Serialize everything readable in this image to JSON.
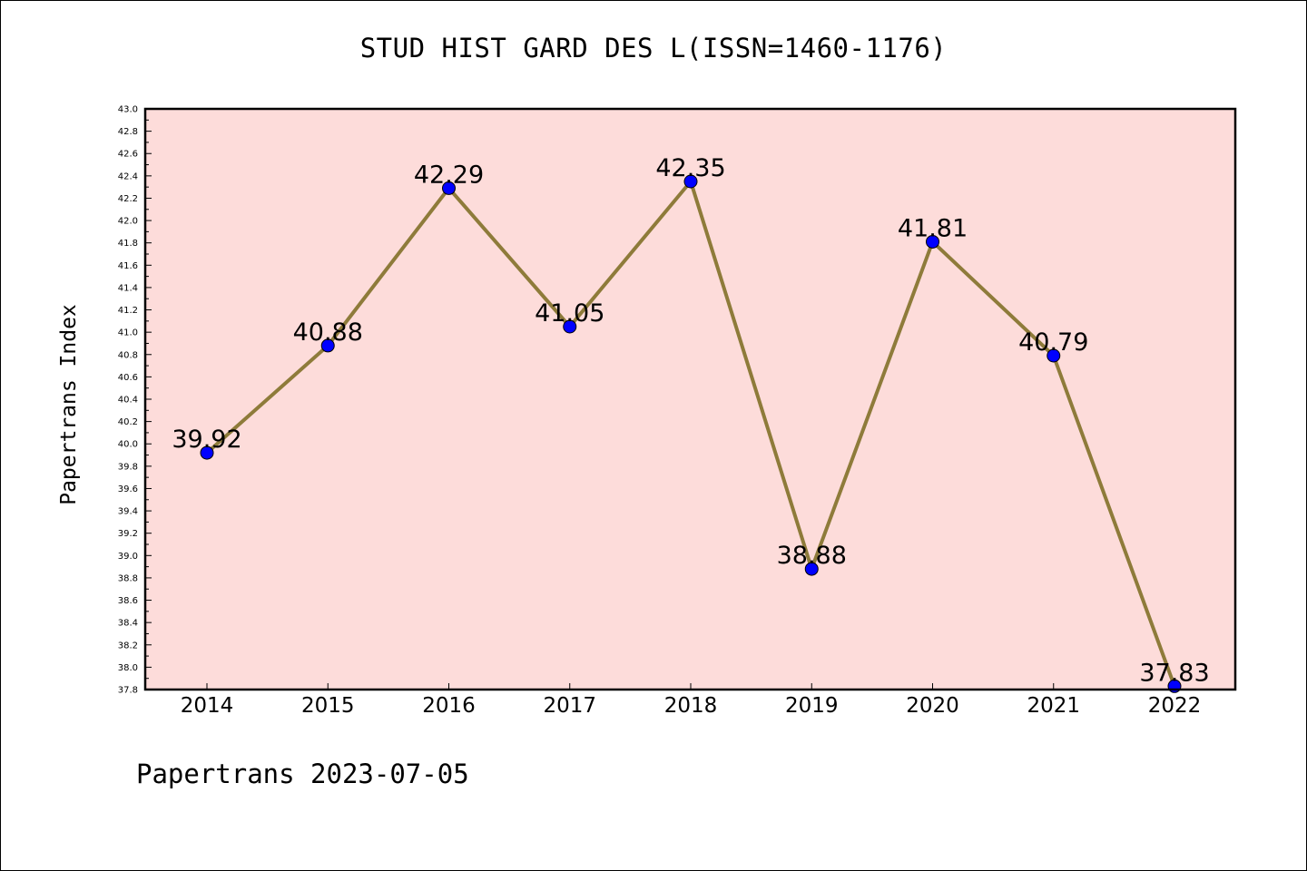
{
  "chart_data": {
    "type": "line",
    "title": "STUD HIST GARD DES L(ISSN=1460-1176)",
    "xlabel": "",
    "ylabel": "Papertrans Index",
    "categories": [
      "2014",
      "2015",
      "2016",
      "2017",
      "2018",
      "2019",
      "2020",
      "2021",
      "2022"
    ],
    "series": [
      {
        "values": [
          39.92,
          40.88,
          42.29,
          41.05,
          42.35,
          38.88,
          41.81,
          40.79,
          37.83
        ],
        "data_labels": [
          "39.92",
          "40.88",
          "42.29",
          "41.05",
          "42.35",
          "38.88",
          "41.81",
          "40.79",
          "37.83"
        ]
      }
    ],
    "ylim": [
      37.8,
      43.0
    ],
    "yticks": [
      "37.8",
      "38.0",
      "38.2",
      "38.4",
      "38.6",
      "38.8",
      "39.0",
      "39.2",
      "39.4",
      "39.6",
      "39.8",
      "40.0",
      "40.2",
      "40.4",
      "40.6",
      "40.8",
      "41.0",
      "41.2",
      "41.4",
      "41.6",
      "41.8",
      "42.0",
      "42.2",
      "42.4",
      "42.6",
      "42.8",
      "43.0"
    ],
    "grid": false,
    "plot_background": "#fddcda",
    "line_color": "#8e7b3a",
    "marker_color": "#0000ff"
  },
  "footer": {
    "text": "Papertrans 2023-07-05"
  }
}
